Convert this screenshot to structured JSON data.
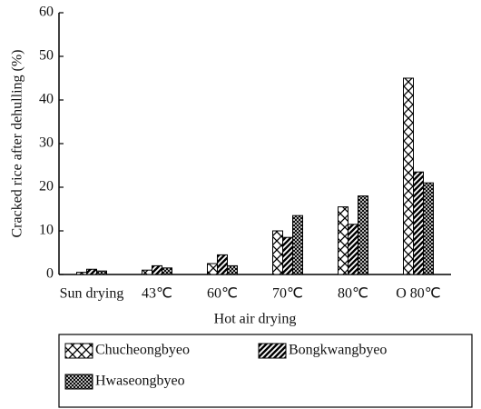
{
  "chart_data": {
    "type": "bar",
    "ylabel": "Cracked rice after dehulling (%)",
    "xlabel": "Hot air drying",
    "categories": [
      "Sun drying",
      "43℃",
      "60℃",
      "70℃",
      "80℃",
      "O 80℃"
    ],
    "series": [
      {
        "name": "Chucheongbyeo",
        "color": "#000000",
        "pattern": "crosshatch",
        "values": [
          0.5,
          1,
          2.5,
          10,
          15.5,
          45
        ]
      },
      {
        "name": "Bongkwangbyeo",
        "color": "#000000",
        "pattern": "diagonal",
        "values": [
          1.2,
          2,
          4.5,
          8.5,
          11.5,
          23.5
        ]
      },
      {
        "name": "Hwaseongbyeo",
        "color": "#000000",
        "pattern": "dense-crosshatch",
        "values": [
          0.8,
          1.5,
          2,
          13.5,
          18,
          21
        ]
      }
    ],
    "ylim": [
      0,
      60
    ],
    "yticks": [
      0,
      10,
      20,
      30,
      40,
      50,
      60
    ],
    "grid": false
  }
}
